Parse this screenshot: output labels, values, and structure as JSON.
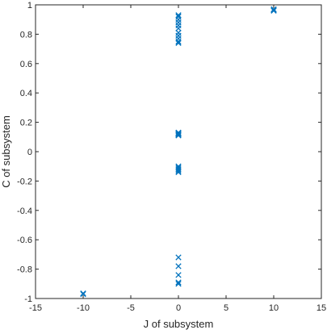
{
  "chart_data": {
    "type": "scatter",
    "title": "",
    "xlabel": "J of subsystem",
    "ylabel": "C of subsystem",
    "xlim": [
      -15,
      15
    ],
    "ylim": [
      -1,
      1
    ],
    "x_ticks": [
      "-15",
      "-10",
      "-5",
      "0",
      "5",
      "10",
      "15"
    ],
    "y_ticks": [
      "-1",
      "-0.8",
      "-0.6",
      "-0.4",
      "-0.2",
      "0",
      "0.2",
      "0.4",
      "0.6",
      "0.8",
      "1"
    ],
    "grid": false,
    "marker": "x",
    "color": "#0072BD",
    "series": [
      {
        "points": [
          [
            -10,
            -0.97
          ],
          [
            -10,
            -0.965
          ],
          [
            10,
            0.97
          ],
          [
            10,
            0.965
          ],
          [
            10,
            0.96
          ],
          [
            0,
            0.93
          ],
          [
            0,
            0.92
          ],
          [
            0,
            0.9
          ],
          [
            0,
            0.88
          ],
          [
            0,
            0.86
          ],
          [
            0,
            0.84
          ],
          [
            0,
            0.81
          ],
          [
            0,
            0.79
          ],
          [
            0,
            0.77
          ],
          [
            0,
            0.75
          ],
          [
            0,
            0.74
          ],
          [
            0,
            0.13
          ],
          [
            0,
            0.125
          ],
          [
            0,
            0.12
          ],
          [
            0,
            0.115
          ],
          [
            0,
            0.11
          ],
          [
            0,
            -0.1
          ],
          [
            0,
            -0.11
          ],
          [
            0,
            -0.12
          ],
          [
            0,
            -0.13
          ],
          [
            0,
            -0.14
          ],
          [
            0,
            -0.72
          ],
          [
            0,
            -0.78
          ],
          [
            0,
            -0.84
          ],
          [
            0,
            -0.89
          ],
          [
            0,
            -0.9
          ]
        ]
      }
    ]
  }
}
